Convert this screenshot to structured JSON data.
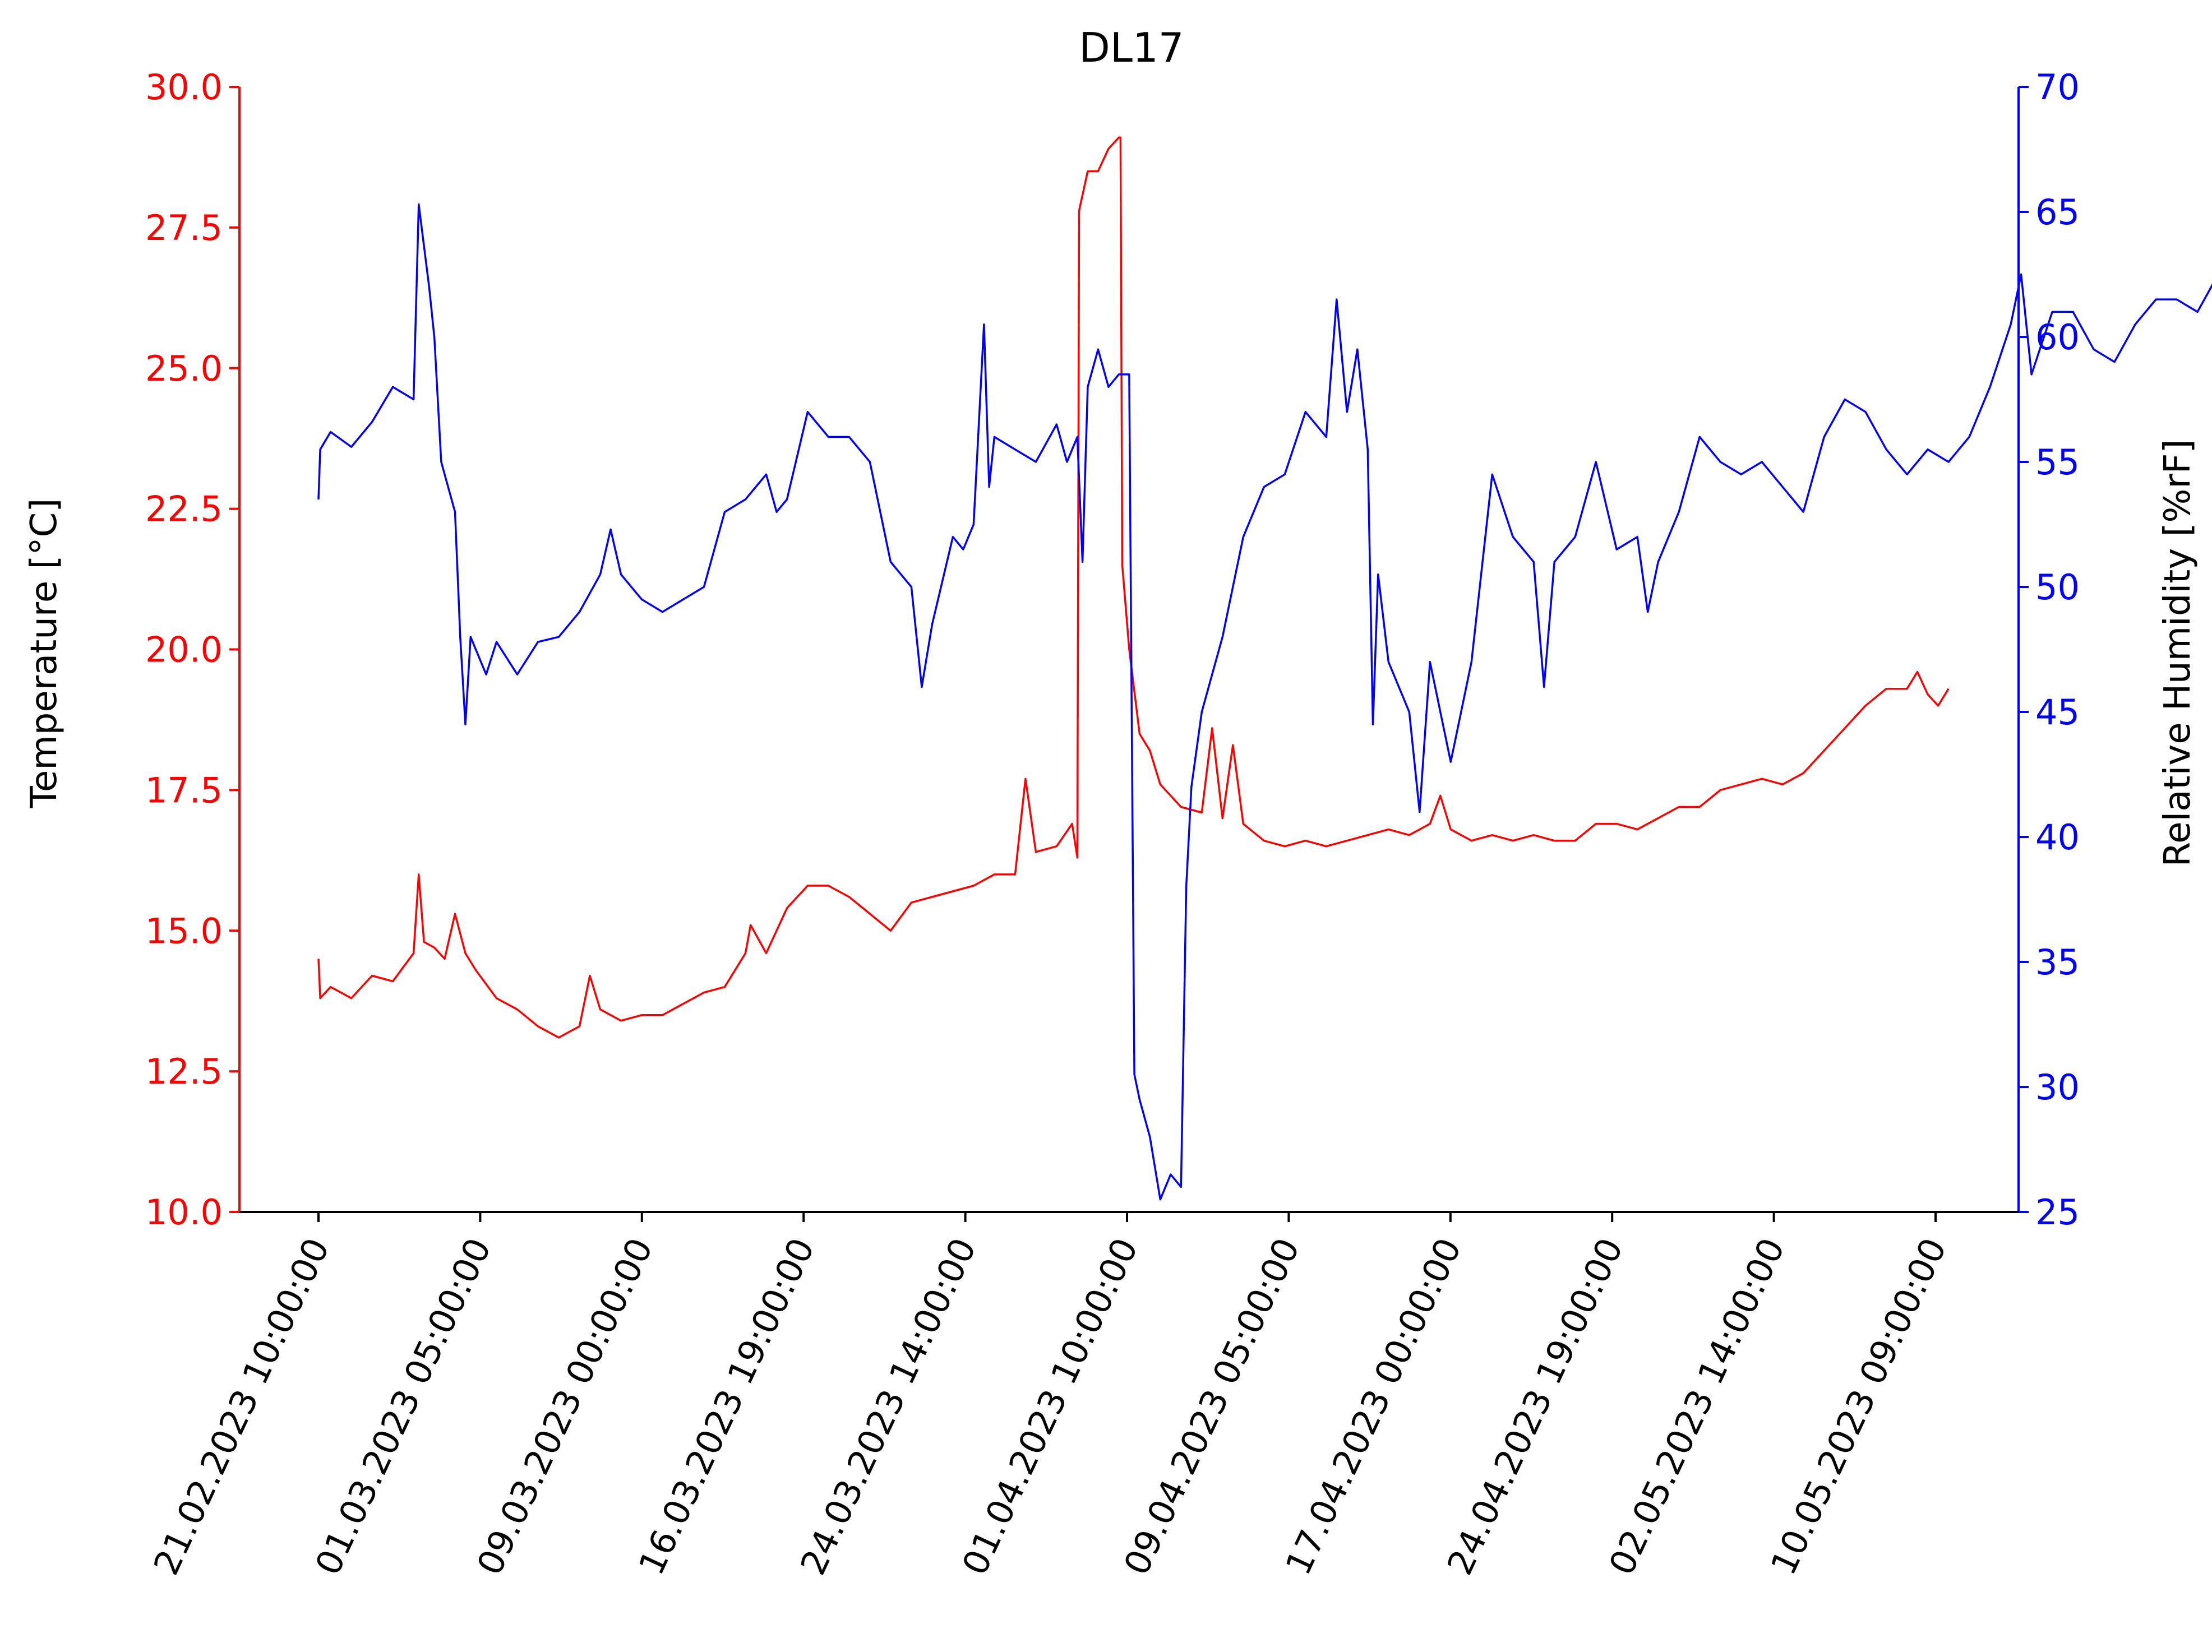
{
  "chart_data": {
    "type": "line",
    "title": "DL17",
    "xlabel": "",
    "ylabel_left": "Temperature [°C]",
    "ylabel_right": "Relative Humidity [%rF]",
    "x_ticks": [
      "21.02.2023 10:00:00",
      "01.03.2023 05:00:00",
      "09.03.2023 00:00:00",
      "16.03.2023 19:00:00",
      "24.03.2023 14:00:00",
      "01.04.2023 10:00:00",
      "09.04.2023 05:00:00",
      "17.04.2023 00:00:00",
      "24.04.2023 19:00:00",
      "02.05.2023 14:00:00",
      "10.05.2023 09:00:00"
    ],
    "y_left": {
      "range": [
        10.0,
        30.0
      ],
      "ticks": [
        "10.0",
        "12.5",
        "15.0",
        "17.5",
        "20.0",
        "22.5",
        "25.0",
        "27.5",
        "30.0"
      ],
      "color": "#ff0000"
    },
    "y_right": {
      "range": [
        25,
        70
      ],
      "ticks": [
        "25",
        "30",
        "35",
        "40",
        "45",
        "50",
        "55",
        "60",
        "65",
        "70"
      ],
      "color": "#0000ff"
    },
    "grid": false,
    "legend": "none",
    "series": [
      {
        "axis": "left",
        "color": "#ff0000",
        "points": [
          [
            "21.02.2023 10:00",
            14.5
          ],
          [
            "21.02.2023 12:00",
            13.8
          ],
          [
            "22.02.2023 00:00",
            14.0
          ],
          [
            "23.02.2023 00:00",
            13.8
          ],
          [
            "24.02.2023 00:00",
            14.2
          ],
          [
            "25.02.2023 00:00",
            14.1
          ],
          [
            "26.02.2023 00:00",
            14.6
          ],
          [
            "26.02.2023 06:00",
            16.0
          ],
          [
            "26.02.2023 12:00",
            14.8
          ],
          [
            "27.02.2023 00:00",
            14.7
          ],
          [
            "27.02.2023 12:00",
            14.5
          ],
          [
            "28.02.2023 00:00",
            15.3
          ],
          [
            "28.02.2023 12:00",
            14.6
          ],
          [
            "01.03.2023 00:00",
            14.3
          ],
          [
            "02.03.2023 00:00",
            13.8
          ],
          [
            "03.03.2023 00:00",
            13.6
          ],
          [
            "04.03.2023 00:00",
            13.3
          ],
          [
            "05.03.2023 00:00",
            13.1
          ],
          [
            "06.03.2023 00:00",
            13.3
          ],
          [
            "06.03.2023 12:00",
            14.2
          ],
          [
            "07.03.2023 00:00",
            13.6
          ],
          [
            "08.03.2023 00:00",
            13.4
          ],
          [
            "09.03.2023 00:00",
            13.5
          ],
          [
            "10.03.2023 00:00",
            13.5
          ],
          [
            "11.03.2023 00:00",
            13.7
          ],
          [
            "12.03.2023 00:00",
            13.9
          ],
          [
            "13.03.2023 00:00",
            14.0
          ],
          [
            "14.03.2023 00:00",
            14.6
          ],
          [
            "14.03.2023 06:00",
            15.1
          ],
          [
            "15.03.2023 00:00",
            14.6
          ],
          [
            "16.03.2023 00:00",
            15.4
          ],
          [
            "17.03.2023 00:00",
            15.8
          ],
          [
            "18.03.2023 00:00",
            15.8
          ],
          [
            "19.03.2023 00:00",
            15.6
          ],
          [
            "20.03.2023 00:00",
            15.3
          ],
          [
            "21.03.2023 00:00",
            15.0
          ],
          [
            "22.03.2023 00:00",
            15.5
          ],
          [
            "23.03.2023 00:00",
            15.6
          ],
          [
            "24.03.2023 00:00",
            15.7
          ],
          [
            "25.03.2023 00:00",
            15.8
          ],
          [
            "26.03.2023 00:00",
            16.0
          ],
          [
            "27.03.2023 00:00",
            16.0
          ],
          [
            "27.03.2023 12:00",
            17.7
          ],
          [
            "28.03.2023 00:00",
            16.4
          ],
          [
            "29.03.2023 00:00",
            16.5
          ],
          [
            "29.03.2023 18:00",
            16.9
          ],
          [
            "30.03.2023 00:00",
            16.3
          ],
          [
            "30.03.2023 02:00",
            27.8
          ],
          [
            "30.03.2023 12:00",
            28.5
          ],
          [
            "31.03.2023 00:00",
            28.5
          ],
          [
            "31.03.2023 12:00",
            28.9
          ],
          [
            "01.04.2023 00:00",
            29.1
          ],
          [
            "01.04.2023 02:00",
            29.1
          ],
          [
            "01.04.2023 04:00",
            21.5
          ],
          [
            "01.04.2023 12:00",
            20.0
          ],
          [
            "02.04.2023 00:00",
            18.5
          ],
          [
            "02.04.2023 12:00",
            18.2
          ],
          [
            "03.04.2023 00:00",
            17.6
          ],
          [
            "04.04.2023 00:00",
            17.2
          ],
          [
            "05.04.2023 00:00",
            17.1
          ],
          [
            "05.04.2023 12:00",
            18.6
          ],
          [
            "06.04.2023 00:00",
            17.0
          ],
          [
            "06.04.2023 12:00",
            18.3
          ],
          [
            "07.04.2023 00:00",
            16.9
          ],
          [
            "08.04.2023 00:00",
            16.6
          ],
          [
            "09.04.2023 00:00",
            16.5
          ],
          [
            "10.04.2023 00:00",
            16.6
          ],
          [
            "11.04.2023 00:00",
            16.5
          ],
          [
            "12.04.2023 00:00",
            16.6
          ],
          [
            "13.04.2023 00:00",
            16.7
          ],
          [
            "14.04.2023 00:00",
            16.8
          ],
          [
            "15.04.2023 00:00",
            16.7
          ],
          [
            "16.04.2023 00:00",
            16.9
          ],
          [
            "16.04.2023 12:00",
            17.4
          ],
          [
            "17.04.2023 00:00",
            16.8
          ],
          [
            "18.04.2023 00:00",
            16.6
          ],
          [
            "19.04.2023 00:00",
            16.7
          ],
          [
            "20.04.2023 00:00",
            16.6
          ],
          [
            "21.04.2023 00:00",
            16.7
          ],
          [
            "22.04.2023 00:00",
            16.6
          ],
          [
            "23.04.2023 00:00",
            16.6
          ],
          [
            "24.04.2023 00:00",
            16.9
          ],
          [
            "25.04.2023 00:00",
            16.9
          ],
          [
            "26.04.2023 00:00",
            16.8
          ],
          [
            "27.04.2023 00:00",
            17.0
          ],
          [
            "28.04.2023 00:00",
            17.2
          ],
          [
            "29.04.2023 00:00",
            17.2
          ],
          [
            "30.04.2023 00:00",
            17.5
          ],
          [
            "01.05.2023 00:00",
            17.6
          ],
          [
            "02.05.2023 00:00",
            17.7
          ],
          [
            "03.05.2023 00:00",
            17.6
          ],
          [
            "04.05.2023 00:00",
            17.8
          ],
          [
            "05.05.2023 00:00",
            18.2
          ],
          [
            "06.05.2023 00:00",
            18.6
          ],
          [
            "07.05.2023 00:00",
            19.0
          ],
          [
            "08.05.2023 00:00",
            19.3
          ],
          [
            "09.05.2023 00:00",
            19.3
          ],
          [
            "09.05.2023 12:00",
            19.6
          ],
          [
            "10.05.2023 00:00",
            19.2
          ],
          [
            "10.05.2023 12:00",
            19.0
          ],
          [
            "11.05.2023 00:00",
            19.3
          ]
        ]
      },
      {
        "axis": "right",
        "color": "#0000ff",
        "points": [
          [
            "21.02.2023 10:00",
            53.5
          ],
          [
            "21.02.2023 12:00",
            55.5
          ],
          [
            "22.02.2023 00:00",
            56.2
          ],
          [
            "23.02.2023 00:00",
            55.6
          ],
          [
            "24.02.2023 00:00",
            56.6
          ],
          [
            "25.02.2023 00:00",
            58.0
          ],
          [
            "26.02.2023 00:00",
            57.5
          ],
          [
            "26.02.2023 06:00",
            65.3
          ],
          [
            "26.02.2023 18:00",
            62.0
          ],
          [
            "27.02.2023 00:00",
            60.0
          ],
          [
            "27.02.2023 08:00",
            55.0
          ],
          [
            "28.02.2023 00:00",
            53.0
          ],
          [
            "28.02.2023 06:00",
            48.0
          ],
          [
            "28.02.2023 12:00",
            44.5
          ],
          [
            "28.02.2023 18:00",
            48.0
          ],
          [
            "01.03.2023 00:00",
            47.5
          ],
          [
            "01.03.2023 12:00",
            46.5
          ],
          [
            "02.03.2023 00:00",
            47.8
          ],
          [
            "03.03.2023 00:00",
            46.5
          ],
          [
            "04.03.2023 00:00",
            47.8
          ],
          [
            "05.03.2023 00:00",
            48.0
          ],
          [
            "06.03.2023 00:00",
            49.0
          ],
          [
            "07.03.2023 00:00",
            50.5
          ],
          [
            "07.03.2023 12:00",
            52.3
          ],
          [
            "08.03.2023 00:00",
            50.5
          ],
          [
            "09.03.2023 00:00",
            49.5
          ],
          [
            "10.03.2023 00:00",
            49.0
          ],
          [
            "11.03.2023 00:00",
            49.5
          ],
          [
            "12.03.2023 00:00",
            50.0
          ],
          [
            "13.03.2023 00:00",
            53.0
          ],
          [
            "14.03.2023 00:00",
            53.5
          ],
          [
            "15.03.2023 00:00",
            54.5
          ],
          [
            "15.03.2023 12:00",
            53.0
          ],
          [
            "16.03.2023 00:00",
            53.5
          ],
          [
            "17.03.2023 00:00",
            57.0
          ],
          [
            "18.03.2023 00:00",
            56.0
          ],
          [
            "19.03.2023 00:00",
            56.0
          ],
          [
            "20.03.2023 00:00",
            55.0
          ],
          [
            "21.03.2023 00:00",
            51.0
          ],
          [
            "22.03.2023 00:00",
            50.0
          ],
          [
            "22.03.2023 12:00",
            46.0
          ],
          [
            "23.03.2023 00:00",
            48.5
          ],
          [
            "24.03.2023 00:00",
            52.0
          ],
          [
            "24.03.2023 12:00",
            51.5
          ],
          [
            "25.03.2023 00:00",
            52.5
          ],
          [
            "25.03.2023 12:00",
            60.5
          ],
          [
            "25.03.2023 18:00",
            54.0
          ],
          [
            "26.03.2023 00:00",
            56.0
          ],
          [
            "27.03.2023 00:00",
            55.5
          ],
          [
            "28.03.2023 00:00",
            55.0
          ],
          [
            "29.03.2023 00:00",
            56.5
          ],
          [
            "29.03.2023 12:00",
            55.0
          ],
          [
            "30.03.2023 00:00",
            56.0
          ],
          [
            "30.03.2023 06:00",
            51.0
          ],
          [
            "30.03.2023 12:00",
            58.0
          ],
          [
            "31.03.2023 00:00",
            59.5
          ],
          [
            "31.03.2023 12:00",
            58.0
          ],
          [
            "01.04.2023 00:00",
            58.5
          ],
          [
            "01.04.2023 12:00",
            58.5
          ],
          [
            "01.04.2023 18:00",
            30.5
          ],
          [
            "02.04.2023 00:00",
            29.5
          ],
          [
            "02.04.2023 12:00",
            28.0
          ],
          [
            "03.04.2023 00:00",
            25.5
          ],
          [
            "03.04.2023 12:00",
            26.5
          ],
          [
            "04.04.2023 00:00",
            26.0
          ],
          [
            "04.04.2023 06:00",
            38.0
          ],
          [
            "04.04.2023 12:00",
            42.0
          ],
          [
            "05.04.2023 00:00",
            45.0
          ],
          [
            "06.04.2023 00:00",
            48.0
          ],
          [
            "07.04.2023 00:00",
            52.0
          ],
          [
            "08.04.2023 00:00",
            54.0
          ],
          [
            "09.04.2023 00:00",
            54.5
          ],
          [
            "10.04.2023 00:00",
            57.0
          ],
          [
            "11.04.2023 00:00",
            56.0
          ],
          [
            "11.04.2023 12:00",
            61.5
          ],
          [
            "12.04.2023 00:00",
            57.0
          ],
          [
            "12.04.2023 12:00",
            59.5
          ],
          [
            "13.04.2023 00:00",
            55.5
          ],
          [
            "13.04.2023 06:00",
            44.5
          ],
          [
            "13.04.2023 12:00",
            50.5
          ],
          [
            "14.04.2023 00:00",
            47.0
          ],
          [
            "15.04.2023 00:00",
            45.0
          ],
          [
            "15.04.2023 12:00",
            41.0
          ],
          [
            "16.04.2023 00:00",
            47.0
          ],
          [
            "17.04.2023 00:00",
            43.0
          ],
          [
            "18.04.2023 00:00",
            47.0
          ],
          [
            "19.04.2023 00:00",
            54.5
          ],
          [
            "20.04.2023 00:00",
            52.0
          ],
          [
            "21.04.2023 00:00",
            51.0
          ],
          [
            "21.04.2023 12:00",
            46.0
          ],
          [
            "22.04.2023 00:00",
            51.0
          ],
          [
            "23.04.2023 00:00",
            52.0
          ],
          [
            "24.04.2023 00:00",
            55.0
          ],
          [
            "25.04.2023 00:00",
            51.5
          ],
          [
            "26.04.2023 00:00",
            52.0
          ],
          [
            "26.04.2023 12:00",
            49.0
          ],
          [
            "27.04.2023 00:00",
            51.0
          ],
          [
            "28.04.2023 00:00",
            53.0
          ],
          [
            "29.04.2023 00:00",
            56.0
          ],
          [
            "30.04.2023 00:00",
            55.0
          ],
          [
            "01.05.2023 00:00",
            54.5
          ],
          [
            "02.05.2023 00:00",
            55.0
          ],
          [
            "03.05.2023 00:00",
            54.0
          ],
          [
            "04.05.2023 00:00",
            53.0
          ],
          [
            "05.05.2023 00:00",
            56.0
          ],
          [
            "06.05.2023 00:00",
            57.5
          ],
          [
            "07.05.2023 00:00",
            57.0
          ],
          [
            "08.05.2023 00:00",
            55.5
          ],
          [
            "09.05.2023 00:00",
            54.5
          ],
          [
            "10.05.2023 00:00",
            55.5
          ],
          [
            "11.05.2023 00:00",
            55.0
          ],
          [
            "12.05.2023 00:00",
            56.0
          ],
          [
            "13.05.2023 00:00",
            58.0
          ],
          [
            "14.05.2023 00:00",
            60.5
          ],
          [
            "14.05.2023 12:00",
            62.5
          ],
          [
            "15.05.2023 00:00",
            58.5
          ],
          [
            "16.05.2023 00:00",
            61.0
          ],
          [
            "17.05.2023 00:00",
            61.0
          ],
          [
            "18.05.2023 00:00",
            59.5
          ],
          [
            "19.05.2023 00:00",
            59.0
          ],
          [
            "20.05.2023 00:00",
            60.5
          ],
          [
            "21.05.2023 00:00",
            61.5
          ],
          [
            "22.05.2023 00:00",
            61.5
          ],
          [
            "23.05.2023 00:00",
            61.0
          ],
          [
            "24.05.2023 00:00",
            62.5
          ],
          [
            "24.05.2023 12:00",
            61.0
          ]
        ]
      }
    ]
  }
}
